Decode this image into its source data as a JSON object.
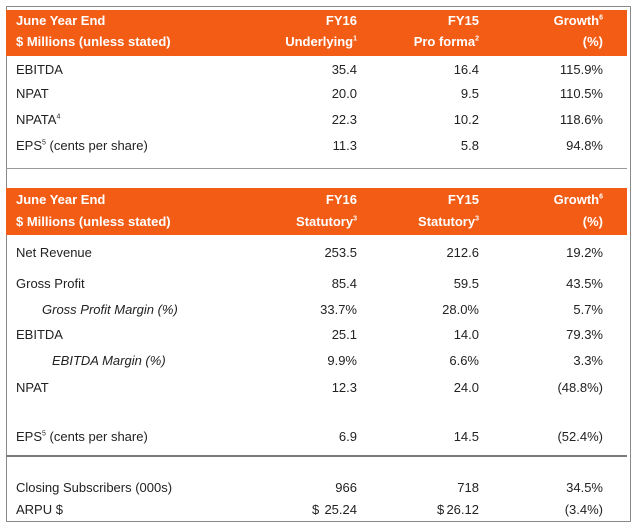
{
  "table1": {
    "header": {
      "line1": {
        "col1": "June Year End",
        "col2": "FY16",
        "col3": "FY15",
        "col4": "Growth",
        "col4_sup": "6"
      },
      "line2": {
        "col1": "$ Millions (unless stated)",
        "col2": "Underlying",
        "col2_sup": "1",
        "col3": "Pro forma",
        "col3_sup": "2",
        "col4": "(%)"
      }
    },
    "rows": [
      {
        "label": "EBITDA",
        "label_sup": "",
        "fy16": "35.4",
        "fy15": "16.4",
        "growth": "115.9%"
      },
      {
        "label": "NPAT",
        "label_sup": "",
        "fy16": "20.0",
        "fy15": "9.5",
        "growth": "110.5%"
      },
      {
        "label": "NPATA",
        "label_sup": "4",
        "fy16": "22.3",
        "fy15": "10.2",
        "growth": "118.6%"
      },
      {
        "label": "EPS",
        "label_sup": "5",
        "label_suffix": " (cents per share)",
        "fy16": "11.3",
        "fy15": "5.8",
        "growth": "94.8%"
      }
    ]
  },
  "table2": {
    "header": {
      "line1": {
        "col1": "June Year End",
        "col2": "FY16",
        "col3": "FY15",
        "col4": "Growth",
        "col4_sup": "6"
      },
      "line2": {
        "col1": "$ Millions (unless stated)",
        "col2": "Statutory",
        "col2_sup": "3",
        "col3": "Statutory",
        "col3_sup": "3",
        "col4": "(%)"
      }
    },
    "rows": [
      {
        "label": "Net Revenue",
        "fy16": "253.5",
        "fy15": "212.6",
        "growth": "19.2%"
      },
      {
        "label": "Gross Profit",
        "fy16": "85.4",
        "fy15": "59.5",
        "growth": "43.5%"
      },
      {
        "label": "Gross Profit Margin (%)",
        "fy16": "33.7%",
        "fy15": "28.0%",
        "growth": "5.7%"
      },
      {
        "label": "EBITDA",
        "fy16": "25.1",
        "fy15": "14.0",
        "growth": "79.3%"
      },
      {
        "label": "EBITDA Margin (%)",
        "fy16": "9.9%",
        "fy15": "6.6%",
        "growth": "3.3%"
      },
      {
        "label": "NPAT",
        "fy16": "12.3",
        "fy15": "24.0",
        "growth": "(48.8%)"
      },
      {
        "label": "EPS",
        "label_sup": "5",
        "label_suffix": " (cents per share)",
        "fy16": "6.9",
        "fy15": "14.5",
        "growth": "(52.4%)"
      },
      {
        "label": "Closing Subscribers (000s)",
        "fy16": "966",
        "fy15": "718",
        "growth": "34.5%"
      },
      {
        "label": "ARPU $",
        "fy16_prefix": "$",
        "fy16": "25.24",
        "fy15_prefix": "$",
        "fy15": "26.12",
        "growth": "(3.4%)"
      }
    ]
  },
  "colors": {
    "header_bg": "#f25c15",
    "header_text": "#ffffff",
    "text": "#222222"
  }
}
